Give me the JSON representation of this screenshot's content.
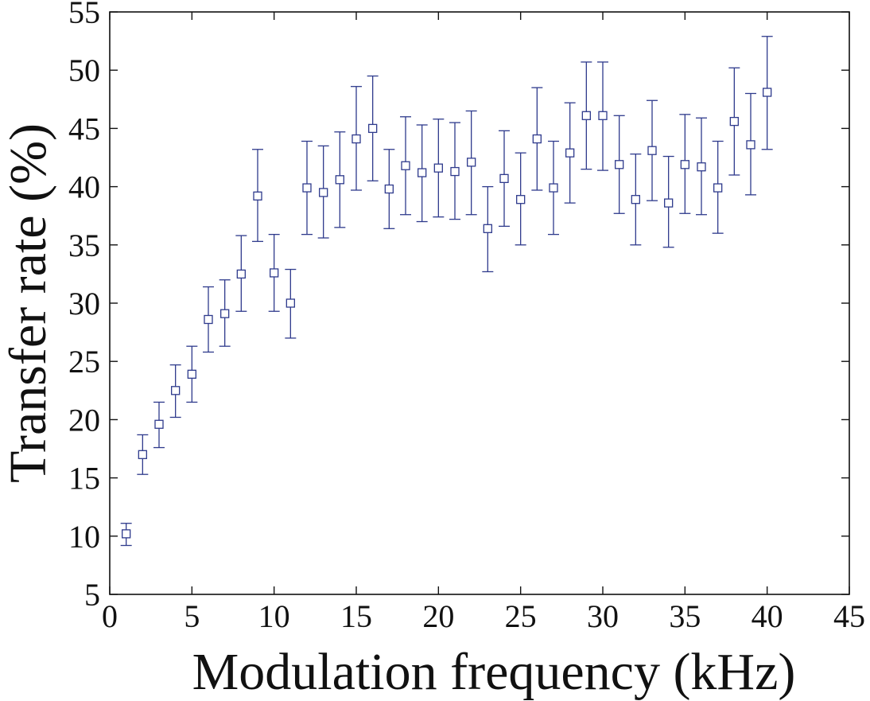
{
  "chart_data": {
    "type": "scatter",
    "xlabel": "Modulation frequency (kHz)",
    "ylabel": "Transfer rate (%)",
    "xlim": [
      0,
      45
    ],
    "ylim": [
      5,
      55
    ],
    "xticks": [
      0,
      5,
      10,
      15,
      20,
      25,
      30,
      35,
      40,
      45
    ],
    "yticks": [
      5,
      10,
      15,
      20,
      25,
      30,
      35,
      40,
      45,
      50,
      55
    ],
    "marker": "square",
    "error_bars": true,
    "color": "#2e3a8c",
    "grid": false,
    "legend": "none",
    "series": [
      {
        "x": [
          1,
          2,
          3,
          4,
          5,
          6,
          7,
          8,
          9,
          10,
          11,
          12,
          13,
          14,
          15,
          16,
          17,
          18,
          19,
          20,
          21,
          22,
          23,
          24,
          25,
          26,
          27,
          28,
          29,
          30,
          31,
          32,
          33,
          34,
          35,
          36,
          37,
          38,
          39,
          40
        ],
        "y": [
          10.2,
          17.0,
          19.6,
          22.5,
          23.9,
          28.6,
          29.1,
          32.5,
          39.2,
          32.6,
          30.0,
          39.9,
          39.5,
          40.6,
          44.1,
          45.0,
          39.8,
          41.8,
          41.2,
          41.6,
          41.3,
          42.1,
          36.4,
          40.7,
          38.9,
          44.1,
          39.9,
          42.9,
          46.1,
          46.1,
          41.9,
          38.9,
          43.1,
          38.6,
          41.9,
          41.7,
          39.9,
          45.6,
          43.6,
          48.1
        ],
        "err_low": [
          9.2,
          15.3,
          17.6,
          20.2,
          21.5,
          25.8,
          26.3,
          29.3,
          35.3,
          29.3,
          27.0,
          35.9,
          35.6,
          36.5,
          39.7,
          40.5,
          36.4,
          37.6,
          37.0,
          37.4,
          37.2,
          37.6,
          32.7,
          36.6,
          35.0,
          39.7,
          35.9,
          38.6,
          41.5,
          41.4,
          37.7,
          35.0,
          38.8,
          34.8,
          37.7,
          37.6,
          36.0,
          41.0,
          39.3,
          43.2
        ],
        "err_high": [
          11.1,
          18.7,
          21.5,
          24.7,
          26.3,
          31.4,
          32.0,
          35.8,
          43.2,
          35.9,
          32.9,
          43.9,
          43.5,
          44.7,
          48.6,
          49.5,
          43.2,
          46.0,
          45.3,
          45.8,
          45.5,
          46.5,
          40.0,
          44.8,
          42.9,
          48.5,
          43.9,
          47.2,
          50.7,
          50.7,
          46.1,
          42.8,
          47.4,
          42.6,
          46.2,
          45.9,
          43.9,
          50.2,
          48.0,
          52.9
        ]
      }
    ]
  }
}
